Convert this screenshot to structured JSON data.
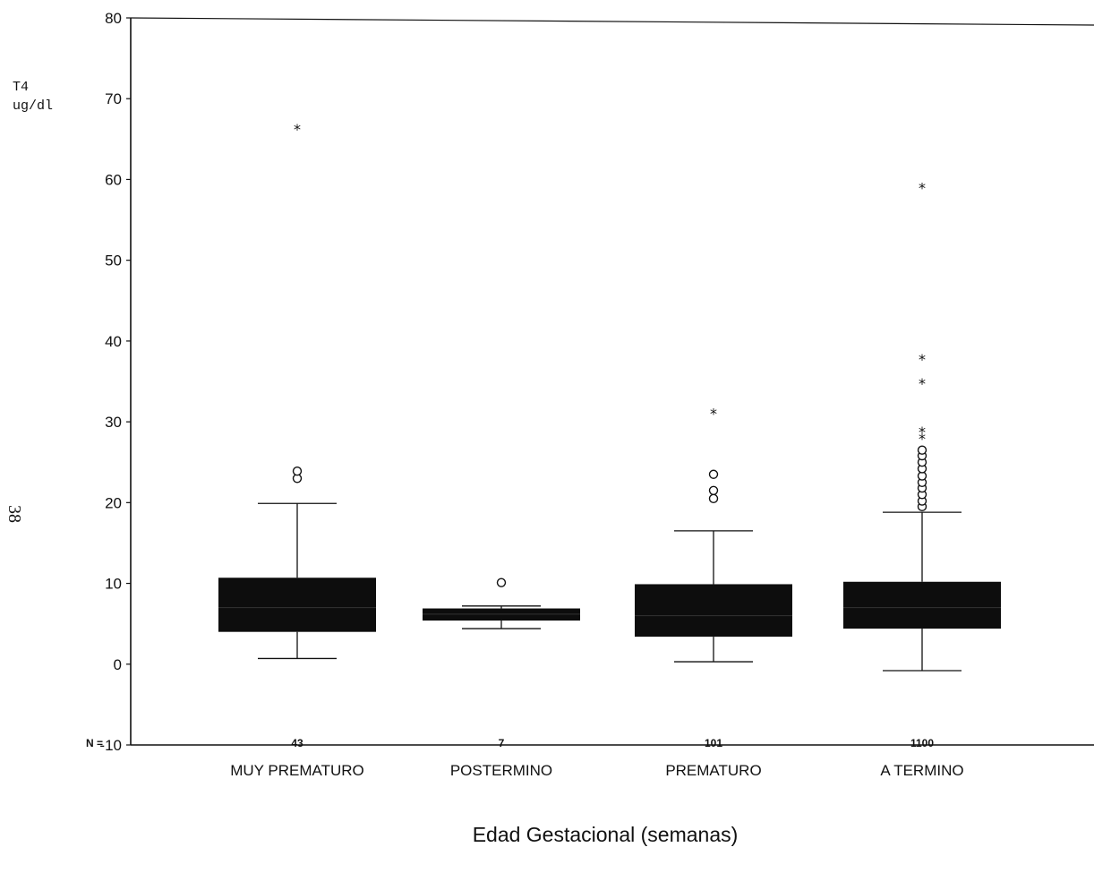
{
  "page_number": "38",
  "chart_data": {
    "type": "boxplot",
    "ylabel_line1": "T4",
    "ylabel_line2": "ug/dl",
    "xlabel": "Edad Gestacional (semanas)",
    "n_label": "N =",
    "ylim": [
      -10,
      80
    ],
    "yticks": [
      -10,
      0,
      10,
      20,
      30,
      40,
      50,
      60,
      70,
      80
    ],
    "categories": [
      "MUY PREMATURO",
      "POSTERMINO",
      "PREMATURO",
      "A TERMINO"
    ],
    "n": [
      "43",
      "7",
      "101",
      "1100"
    ],
    "boxes": [
      {
        "whisker_low": 0.7,
        "q1": 4.0,
        "median": 7.0,
        "q3": 10.7,
        "whisker_high": 19.9,
        "outliers": [
          23.0,
          23.9
        ],
        "extremes": [
          66.5
        ]
      },
      {
        "whisker_low": 4.4,
        "q1": 5.4,
        "median": 6.2,
        "q3": 6.9,
        "whisker_high": 7.2,
        "outliers": [
          10.1
        ],
        "extremes": []
      },
      {
        "whisker_low": 0.3,
        "q1": 3.4,
        "median": 6.0,
        "q3": 9.9,
        "whisker_high": 16.5,
        "outliers": [
          20.5,
          21.5,
          23.5
        ],
        "extremes": [
          31.3
        ]
      },
      {
        "whisker_low": -0.8,
        "q1": 4.4,
        "median": 7.0,
        "q3": 10.2,
        "whisker_high": 18.8,
        "outliers": [
          19.5,
          20.2,
          21.0,
          21.8,
          22.5,
          23.3,
          24.2,
          25.0,
          25.8,
          26.5
        ],
        "extremes": [
          28.2,
          29.0,
          35.0,
          38.0,
          59.2
        ]
      }
    ]
  }
}
